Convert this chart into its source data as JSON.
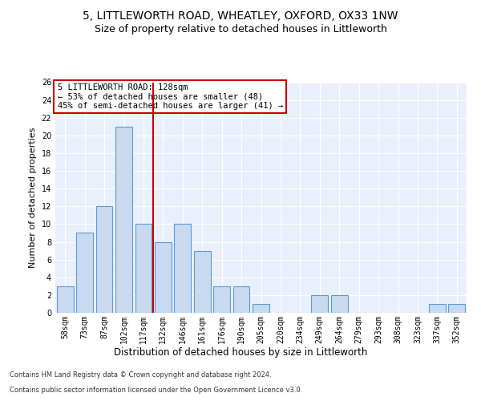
{
  "title1": "5, LITTLEWORTH ROAD, WHEATLEY, OXFORD, OX33 1NW",
  "title2": "Size of property relative to detached houses in Littleworth",
  "xlabel": "Distribution of detached houses by size in Littleworth",
  "ylabel": "Number of detached properties",
  "bin_labels": [
    "58sqm",
    "73sqm",
    "87sqm",
    "102sqm",
    "117sqm",
    "132sqm",
    "146sqm",
    "161sqm",
    "176sqm",
    "190sqm",
    "205sqm",
    "220sqm",
    "234sqm",
    "249sqm",
    "264sqm",
    "279sqm",
    "293sqm",
    "308sqm",
    "323sqm",
    "337sqm",
    "352sqm"
  ],
  "values": [
    3,
    9,
    12,
    21,
    10,
    8,
    10,
    7,
    3,
    3,
    1,
    0,
    0,
    2,
    2,
    0,
    0,
    0,
    0,
    1,
    1
  ],
  "bar_color": "#c9d9f0",
  "bar_edge_color": "#5b9bd5",
  "vline_color": "#cc0000",
  "annotation_text": "5 LITTLEWORTH ROAD: 128sqm\n← 53% of detached houses are smaller (48)\n45% of semi-detached houses are larger (41) →",
  "annotation_box_color": "#ffffff",
  "annotation_box_edge_color": "#cc0000",
  "footer1": "Contains HM Land Registry data © Crown copyright and database right 2024.",
  "footer2": "Contains public sector information licensed under the Open Government Licence v3.0.",
  "ylim": [
    0,
    26
  ],
  "plot_bg_color": "#eaf0fb",
  "title1_fontsize": 10,
  "title2_fontsize": 9,
  "tick_fontsize": 7,
  "ylabel_fontsize": 8,
  "xlabel_fontsize": 8.5,
  "footer_fontsize": 6,
  "ann_fontsize": 7.5
}
